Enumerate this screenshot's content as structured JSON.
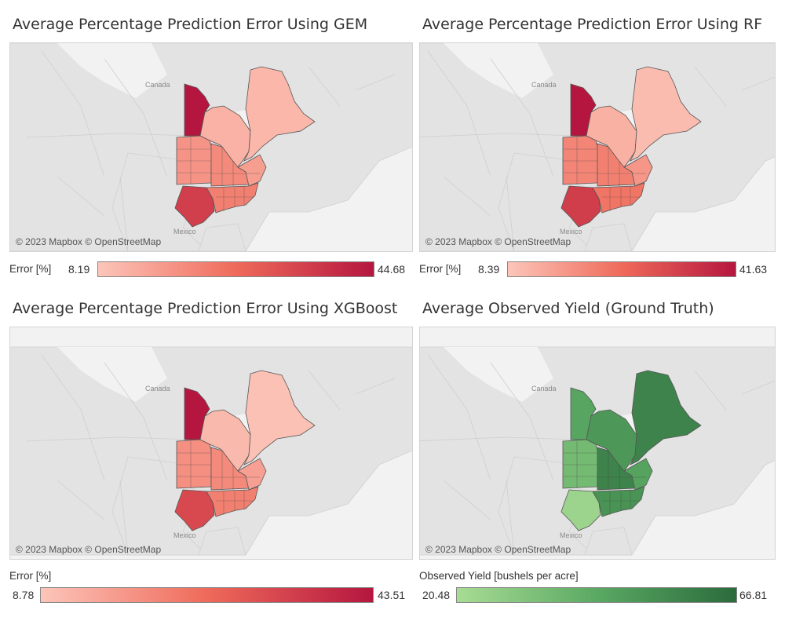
{
  "attribution": "© 2023 Mapbox © OpenStreetMap",
  "place_labels": {
    "canada": "Canada",
    "mexico": "Mexico"
  },
  "colors": {
    "error_low": "#fcc5b9",
    "error_mid": "#ef6a5a",
    "error_high": "#b5163f",
    "yield_low": "#a8dc94",
    "yield_mid": "#5aa963",
    "yield_high": "#2b6b3c",
    "base_land": "#e3e3e3",
    "water": "#f2f2f2"
  },
  "panels": {
    "gem": {
      "title": "Average Percentage Prediction Error Using GEM",
      "legend": {
        "label": "Error [%]",
        "min": "8.19",
        "max": "44.68"
      },
      "values": {
        "manitoba": 44.68,
        "ontario": 12,
        "quebec": 11,
        "texas": 36,
        "plains": 18,
        "midwest": 20,
        "south": 22,
        "east": 16
      }
    },
    "rf": {
      "title": "Average Percentage Prediction Error Using RF",
      "legend": {
        "label": "Error [%]",
        "min": "8.39",
        "max": "41.63"
      },
      "values": {
        "manitoba": 41.63,
        "ontario": 12,
        "quebec": 10,
        "texas": 34,
        "plains": 20,
        "midwest": 21,
        "south": 23,
        "east": 17
      }
    },
    "xgboost": {
      "title": "Average Percentage Prediction Error Using XGBoost",
      "legend": {
        "label": "Error [%]",
        "min": "8.78",
        "max": "43.51"
      },
      "values": {
        "manitoba": 43.51,
        "ontario": 11,
        "quebec": 9.5,
        "texas": 33,
        "plains": 19,
        "midwest": 20,
        "south": 22,
        "east": 16
      }
    },
    "yield": {
      "title": "Average Observed Yield (Ground Truth)",
      "legend": {
        "label": "Observed Yield [bushels per acre]",
        "min": "20.48",
        "max": "66.81"
      },
      "values": {
        "manitoba": 45,
        "ontario": 50,
        "quebec": 58,
        "texas": 24,
        "plains": 36,
        "midwest": 58,
        "south": 52,
        "east": 46
      }
    }
  }
}
